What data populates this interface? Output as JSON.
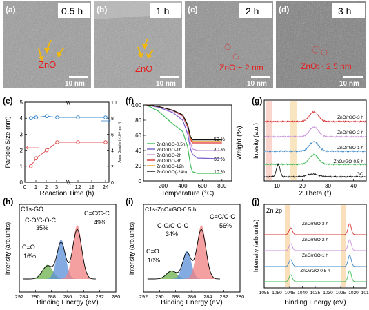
{
  "figure": {
    "panel_labels": [
      "(a)",
      "(b)",
      "(c)",
      "(d)",
      "(e)",
      "(f)",
      "(g)",
      "(h)",
      "(i)",
      "(j)"
    ],
    "tem": [
      {
        "time": "0.5 h",
        "annotation": "ZnO",
        "scale": "10 nm"
      },
      {
        "time": "1 h",
        "annotation": "ZnO",
        "scale": "10 nm"
      },
      {
        "time": "2 h",
        "annotation": "ZnO:~ 2 nm",
        "scale": "10 nm"
      },
      {
        "time": "3 h",
        "annotation": "ZnO:~ 2.5 nm",
        "scale": "10 nm"
      }
    ]
  },
  "chart_data": [
    {
      "panel": "e",
      "type": "line",
      "xlabel": "Reaction Time (h)",
      "ylabel": "Particle Size (nm)",
      "ylabel_right": "Areal Density (×10¹² nm⁻²)",
      "x_ticks": [
        "0",
        "1",
        "2",
        "3",
        "12",
        "18",
        "24"
      ],
      "y_ticks": [
        "0",
        "1",
        "2",
        "3",
        "4",
        "5"
      ],
      "y2_ticks": [
        "0",
        "2",
        "4",
        "6",
        "8",
        "10"
      ],
      "series": [
        {
          "name": "",
          "axis": "left",
          "color": "#e05050",
          "x": [
            0.5,
            1,
            2,
            3,
            12,
            24
          ],
          "y": [
            1.0,
            1.5,
            2.0,
            2.5,
            2.5,
            2.5
          ]
        },
        {
          "name": "",
          "axis": "right",
          "color": "#3a86c8",
          "x": [
            0.5,
            1,
            2,
            3,
            12,
            24
          ],
          "y": [
            8.0,
            8.1,
            8.25,
            8.1,
            8.1,
            8.1
          ]
        }
      ]
    },
    {
      "panel": "f",
      "type": "line",
      "xlabel": "Temperature (°C)",
      "ylabel": "Weight (%)",
      "x_ticks": [
        "200",
        "400",
        "600",
        "800"
      ],
      "y_ticks": [
        "0",
        "20",
        "40",
        "60",
        "80",
        "100"
      ],
      "annotations": [
        "50 %",
        "40 %",
        "30 %",
        "10 %"
      ],
      "series": [
        {
          "name": "ZnO/rGO-0.5h",
          "color": "#3cba54",
          "x": [
            30,
            150,
            300,
            400,
            450,
            480,
            500,
            550,
            800
          ],
          "y": [
            100,
            92,
            75,
            65,
            45,
            20,
            12,
            10,
            10
          ]
        },
        {
          "name": "ZnO/rGO-1h",
          "color": "#7a5cc8",
          "x": [
            30,
            150,
            300,
            400,
            450,
            480,
            500,
            550,
            800
          ],
          "y": [
            100,
            97,
            90,
            80,
            62,
            42,
            35,
            30,
            29
          ]
        },
        {
          "name": "ZnO/rGO-2h",
          "color": "#c58fd8",
          "x": [
            30,
            150,
            300,
            400,
            450,
            480,
            500,
            550,
            800
          ],
          "y": [
            100,
            98,
            92,
            85,
            70,
            50,
            42,
            40,
            40
          ]
        },
        {
          "name": "ZnO/rGO-3h",
          "color": "#d93030",
          "x": [
            30,
            150,
            300,
            400,
            450,
            480,
            500,
            550,
            800
          ],
          "y": [
            100,
            98,
            93,
            86,
            72,
            55,
            50,
            50,
            50
          ]
        },
        {
          "name": "ZnO/rGO-12h",
          "color": "#f0a020",
          "x": [
            30,
            150,
            300,
            400,
            450,
            480,
            500,
            550,
            800
          ],
          "y": [
            100,
            98,
            93,
            87,
            73,
            57,
            52,
            52,
            52
          ]
        },
        {
          "name": "ZnO/rGO(-24h)",
          "color": "#111111",
          "x": [
            30,
            150,
            300,
            400,
            450,
            480,
            500,
            550,
            800
          ],
          "y": [
            100,
            98,
            93,
            87,
            74,
            58,
            54,
            54,
            54
          ]
        }
      ]
    },
    {
      "panel": "g",
      "type": "line",
      "xlabel": "2 Theta (°)",
      "ylabel": "Intesity (a.u.)",
      "x_ticks": [
        "10",
        "20",
        "30",
        "40"
      ],
      "series": [
        {
          "name": "ZnO/rGO-3 h",
          "color": "#d93030"
        },
        {
          "name": "ZnO/rGO-2 h",
          "color": "#c58fd8"
        },
        {
          "name": "ZnO/rGO-1 h",
          "color": "#3a86c8"
        },
        {
          "name": "ZnO/rGO-0.5 h",
          "color": "#3cba54"
        },
        {
          "name": "GO",
          "color": "#111111"
        }
      ]
    },
    {
      "panel": "h",
      "type": "area",
      "title": "C1s-GO",
      "xlabel": "Binding Energy (eV)",
      "ylabel": "Intensity (arb.units)",
      "x_ticks": [
        "292",
        "290",
        "288",
        "286",
        "284",
        "282",
        "280"
      ],
      "peaks": [
        {
          "label": "C=O",
          "pct": "16%",
          "center": 288.5,
          "height": 0.25,
          "color": "#6ab04c"
        },
        {
          "label": "C-O/C-O-C",
          "pct": "35%",
          "center": 286.8,
          "height": 0.7,
          "color": "#5b8ed8"
        },
        {
          "label": "C=C/C-C",
          "pct": "49%",
          "center": 284.8,
          "height": 0.95,
          "color": "#f08080"
        }
      ]
    },
    {
      "panel": "i",
      "type": "area",
      "title": "C1s-ZnO/rGO-0.5 h",
      "xlabel": "Binding Energy (eV)",
      "ylabel": "Intensity (arb.units)",
      "x_ticks": [
        "292",
        "290",
        "288",
        "286",
        "284",
        "282",
        "280"
      ],
      "peaks": [
        {
          "label": "C=O",
          "pct": "10%",
          "center": 288.5,
          "height": 0.15,
          "color": "#6ab04c"
        },
        {
          "label": "C-O/C-O-C",
          "pct": "34%",
          "center": 286.6,
          "height": 0.5,
          "color": "#5b8ed8"
        },
        {
          "label": "C=C/C-C",
          "pct": "56%",
          "center": 284.8,
          "height": 0.95,
          "color": "#f08080"
        }
      ]
    },
    {
      "panel": "j",
      "type": "line",
      "title": "Zn 2p",
      "xlabel": "Binding Energy (eV)",
      "ylabel": "Intensity (arb.units)",
      "x_ticks": [
        "1055",
        "1050",
        "1045",
        "1040",
        "1035",
        "1030",
        "1025",
        "1020",
        "1015"
      ],
      "series": [
        {
          "name": "ZnO/rGO-3 h",
          "color": "#d93030"
        },
        {
          "name": "ZnO/rGO-2 h",
          "color": "#c58fd8"
        },
        {
          "name": "ZnO/rGO-1 h",
          "color": "#3a86c8"
        },
        {
          "name": "ZnO/rGO-0.5 h",
          "color": "#3cba54"
        }
      ]
    }
  ]
}
